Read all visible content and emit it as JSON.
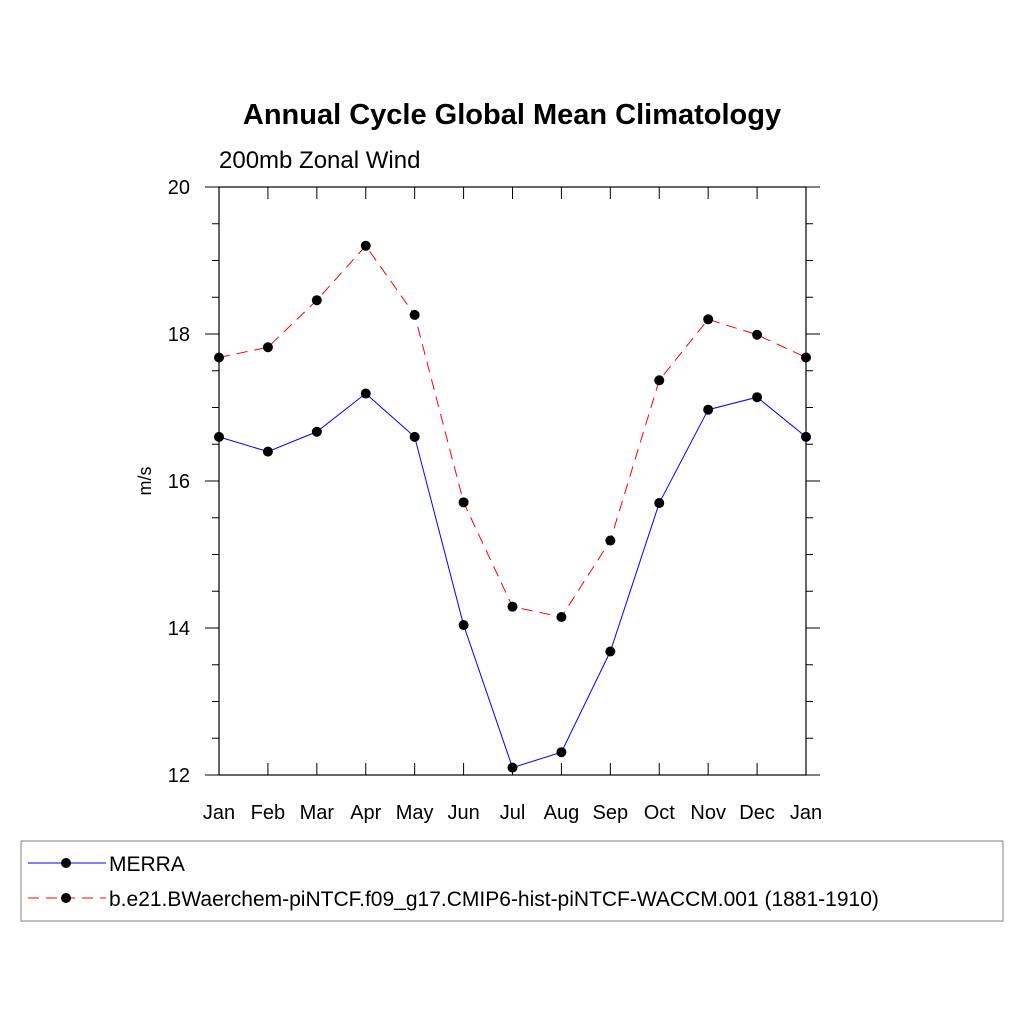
{
  "chart_data": {
    "type": "line",
    "title": "Annual Cycle Global Mean Climatology",
    "subtitle": "200mb Zonal Wind",
    "xlabel": "",
    "ylabel": "m/s",
    "categories": [
      "Jan",
      "Feb",
      "Mar",
      "Apr",
      "May",
      "Jun",
      "Jul",
      "Aug",
      "Sep",
      "Oct",
      "Nov",
      "Dec",
      "Jan"
    ],
    "ylim": [
      12,
      20
    ],
    "yticks": [
      "12",
      "14",
      "16",
      "18",
      "20"
    ],
    "legend_position": "bottom",
    "series": [
      {
        "name": "MERRA",
        "color": "#0000ff",
        "line_style": "solid",
        "values": [
          16.6,
          16.4,
          16.67,
          17.19,
          16.6,
          14.04,
          12.1,
          12.31,
          13.68,
          15.7,
          16.97,
          17.14,
          16.6
        ]
      },
      {
        "name": "b.e21.BWaerchem-piNTCF.f09_g17.CMIP6-hist-piNTCF-WACCM.001 (1881-1910)",
        "color": "#ff0000",
        "line_style": "dashed",
        "values": [
          17.68,
          17.82,
          18.46,
          19.2,
          18.26,
          15.71,
          14.29,
          14.15,
          15.19,
          17.37,
          18.2,
          17.99,
          17.68
        ]
      }
    ]
  }
}
